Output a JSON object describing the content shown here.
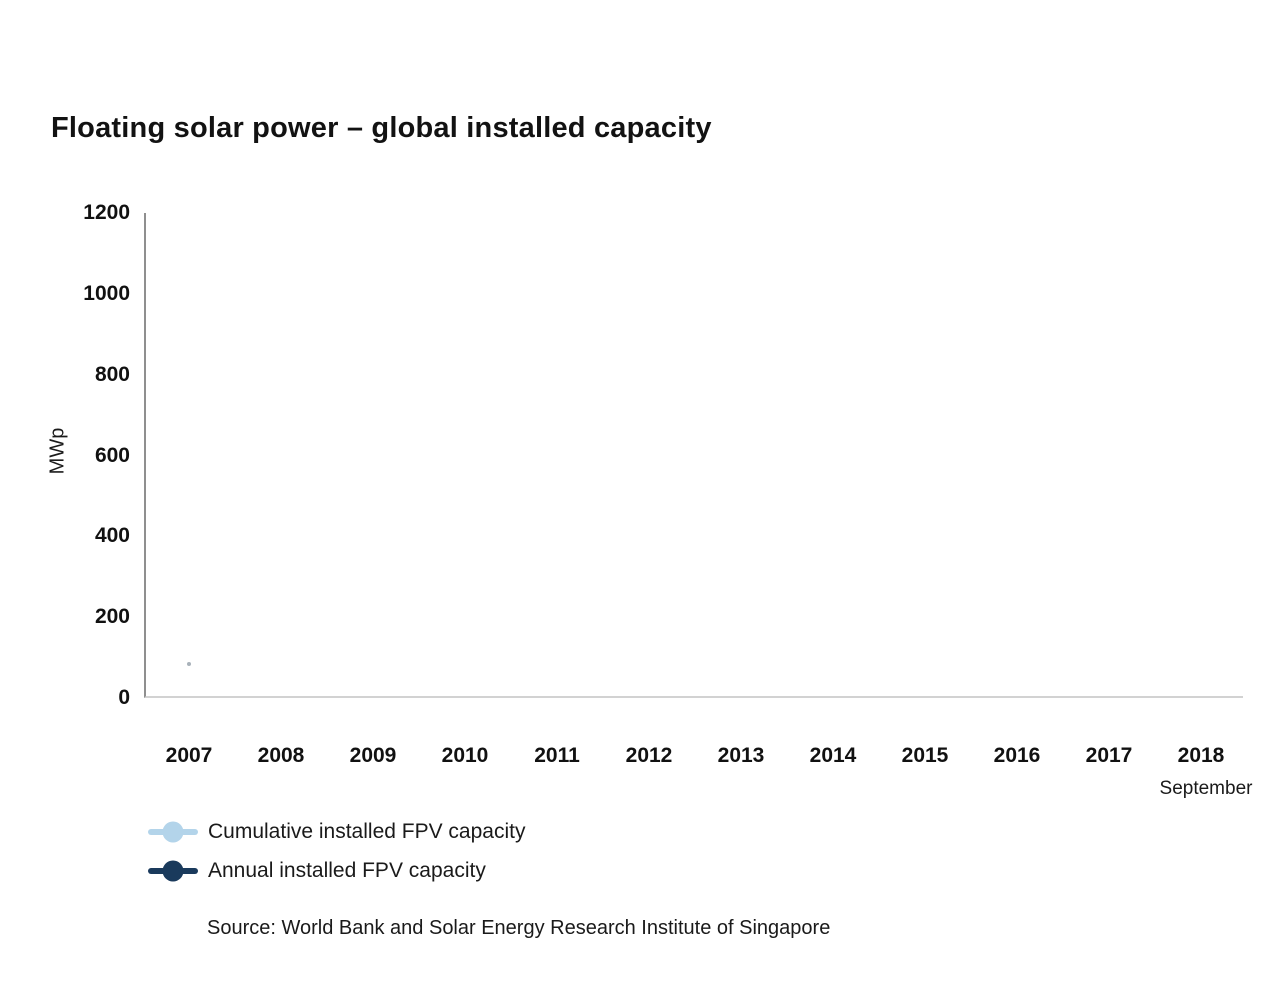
{
  "chart_data": {
    "type": "line",
    "title": "Floating solar power – global installed capacity",
    "ylabel": "MWp",
    "ylim": [
      0,
      1200
    ],
    "yticks": [
      0,
      200,
      400,
      600,
      800,
      1000,
      1200
    ],
    "categories": [
      "2007",
      "2008",
      "2009",
      "2010",
      "2011",
      "2012",
      "2013",
      "2014",
      "2015",
      "2016",
      "2017",
      "2018"
    ],
    "x_axis_sublabel": "September",
    "grid": false,
    "legend_position": "bottom-left",
    "background_color": "#ffffff",
    "axis_colors": {
      "y_axis_line": "#8f8f8f",
      "x_axis_line": "#d2d2d2"
    },
    "series": [
      {
        "name": "Cumulative installed FPV capacity",
        "color": "#b3d4ea",
        "values": []
      },
      {
        "name": "Annual installed FPV capacity",
        "color": "#1a3a5c",
        "values": []
      }
    ],
    "visible_points": [
      {
        "x": "2007",
        "approx_value": 85,
        "color": "#9aa5ae"
      }
    ]
  },
  "source": "Source: World Bank and Solar Energy Research Institute of Singapore"
}
